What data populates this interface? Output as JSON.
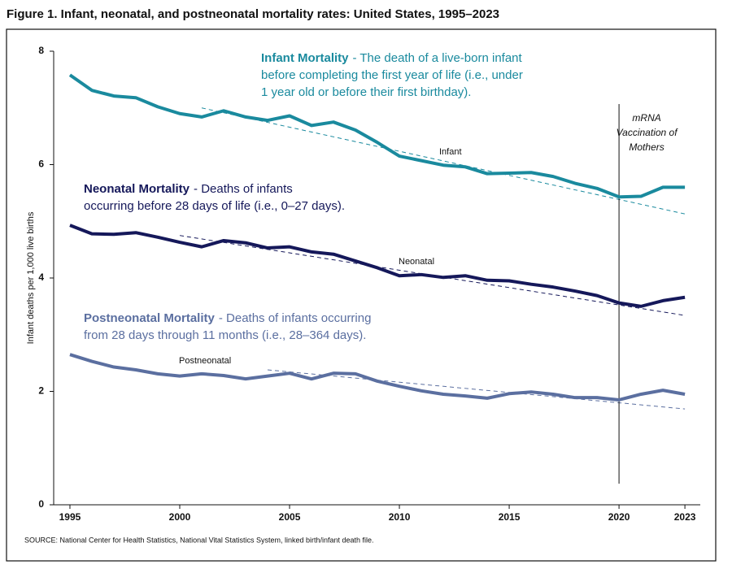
{
  "chart_data": {
    "type": "line",
    "title": "Figure 1. Infant, neonatal, and postneonatal mortality rates: United States, 1995–2023",
    "y_label": "Infant deaths per 1,000 live births",
    "source": "SOURCE: National Center for Health Statistics, National Vital Statistics System, linked birth/infant death file.",
    "x": [
      1995,
      1996,
      1997,
      1998,
      1999,
      2000,
      2001,
      2002,
      2003,
      2004,
      2005,
      2006,
      2007,
      2008,
      2009,
      2010,
      2011,
      2012,
      2013,
      2014,
      2015,
      2016,
      2017,
      2018,
      2019,
      2020,
      2021,
      2022,
      2023
    ],
    "xlim": [
      1994.26,
      2023.7
    ],
    "xticks": [
      1995,
      2000,
      2005,
      2010,
      2015,
      2020,
      2023
    ],
    "ylim": [
      0,
      8
    ],
    "yticks": [
      0,
      2,
      4,
      6,
      8
    ],
    "grid": false,
    "series": [
      {
        "name": "Infant Mortality",
        "color": "#1a8a9e",
        "values": [
          7.58,
          7.31,
          7.21,
          7.18,
          7.02,
          6.9,
          6.84,
          6.95,
          6.84,
          6.78,
          6.86,
          6.69,
          6.75,
          6.61,
          6.39,
          6.15,
          6.07,
          5.99,
          5.96,
          5.84,
          5.85,
          5.86,
          5.79,
          5.67,
          5.58,
          5.43,
          5.44,
          5.6,
          5.6
        ]
      },
      {
        "name": "Neonatal Mortality",
        "color": "#15185a",
        "values": [
          4.93,
          4.78,
          4.77,
          4.8,
          4.72,
          4.63,
          4.55,
          4.66,
          4.62,
          4.53,
          4.55,
          4.46,
          4.42,
          4.3,
          4.18,
          4.04,
          4.06,
          4.01,
          4.04,
          3.96,
          3.95,
          3.89,
          3.84,
          3.77,
          3.69,
          3.56,
          3.5,
          3.6,
          3.66
        ]
      },
      {
        "name": "Postneonatal Mortality",
        "color": "#5b6fa0",
        "values": [
          2.65,
          2.53,
          2.43,
          2.38,
          2.31,
          2.27,
          2.31,
          2.28,
          2.22,
          2.27,
          2.32,
          2.22,
          2.32,
          2.31,
          2.18,
          2.09,
          2.01,
          1.95,
          1.92,
          1.88,
          1.96,
          1.99,
          1.95,
          1.89,
          1.89,
          1.85,
          1.95,
          2.02,
          1.95
        ]
      }
    ],
    "descriptions": [
      [
        "-  The death of a live-born infant",
        "before completing the first year of life (i.e., under",
        "1 year old or before their first birthday)."
      ],
      [
        "-  Deaths of infants",
        "occurring before 28 days of life (i.e., 0–27 days)."
      ],
      [
        "-  Deaths of infants occurring",
        "from 28 days through 11 months (i.e., 28–364 days)."
      ]
    ],
    "trend_lines": [
      {
        "name": "Infant",
        "x": [
          2001,
          2023
        ],
        "values": [
          7.0,
          5.13
        ]
      },
      {
        "name": "Neonatal",
        "x": [
          2000,
          2023
        ],
        "values": [
          4.75,
          3.34
        ]
      },
      {
        "name": "Postneonatal",
        "x": [
          2004,
          2023
        ],
        "values": [
          2.38,
          1.69
        ]
      }
    ],
    "vline": {
      "x": 2020,
      "label": [
        "mRNA",
        "Vaccination of",
        "Mothers"
      ]
    }
  }
}
